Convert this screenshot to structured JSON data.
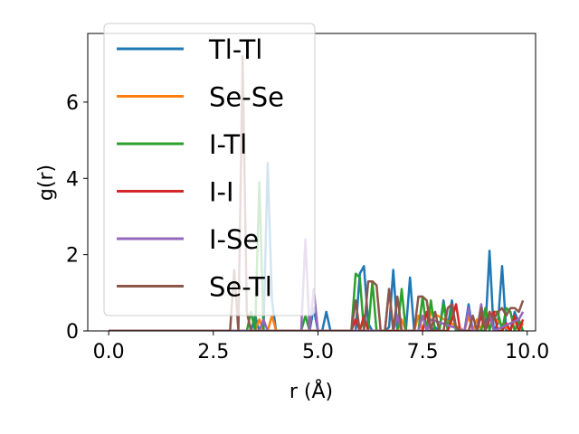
{
  "chart_data": {
    "type": "line",
    "title": "",
    "xlabel": "r (Å)",
    "ylabel": "g(r)",
    "xlim": [
      -0.5,
      10.2
    ],
    "ylim": [
      0,
      7.8
    ],
    "xticks": [
      "0.0",
      "2.5",
      "5.0",
      "7.5",
      "10.0"
    ],
    "xtick_values": [
      0,
      2.5,
      5,
      7.5,
      10
    ],
    "yticks": [
      "0",
      "2",
      "4",
      "6"
    ],
    "ytick_values": [
      0,
      2,
      4,
      6
    ],
    "grid": false,
    "legend_placement": "upper-left",
    "series": [
      {
        "name": "Tl-Tl",
        "color": "#1f77b4",
        "x": [
          0,
          3.4,
          3.5,
          3.6,
          3.7,
          3.8,
          3.9,
          4.0,
          4.1,
          4.8,
          4.9,
          5.0,
          5.1,
          5.2,
          5.3,
          5.9,
          6.0,
          6.1,
          6.2,
          6.3,
          6.6,
          6.7,
          6.8,
          6.9,
          7.1,
          7.2,
          7.3,
          7.7,
          7.8,
          7.9,
          8.0,
          8.1,
          8.2,
          8.3,
          8.5,
          8.6,
          8.7,
          8.8,
          9.0,
          9.1,
          9.2,
          9.3,
          9.4,
          9.5,
          9.6,
          9.7,
          9.8,
          9.9
        ],
        "y": [
          0,
          0,
          0.4,
          0,
          0,
          4.4,
          0.8,
          0,
          0,
          0,
          0.6,
          0,
          0,
          0.5,
          0,
          0,
          1.5,
          1.7,
          0.2,
          0,
          0,
          0.1,
          1.6,
          0,
          0,
          1.4,
          0,
          0,
          0.1,
          0,
          0.8,
          0.1,
          0.8,
          0,
          0,
          0.7,
          0,
          0,
          0,
          2.1,
          0,
          0.2,
          1.7,
          0,
          0,
          0.5,
          0.2,
          0
        ]
      },
      {
        "name": "Se-Se",
        "color": "#ff7f0e",
        "x": [
          0,
          3.5,
          3.6,
          3.7,
          3.8,
          3.9,
          4.0,
          6.9,
          7.0,
          7.1,
          7.2,
          7.3,
          7.4,
          7.5,
          7.6,
          7.7,
          8.5,
          8.6,
          8.7,
          8.8,
          8.9,
          9.0,
          9.6,
          9.7,
          9.8,
          9.9
        ],
        "y": [
          0,
          0,
          0.3,
          0,
          0,
          0.4,
          0,
          0,
          0.3,
          0,
          0,
          0,
          0.4,
          0,
          0,
          0.5,
          0,
          0.4,
          0,
          0.3,
          0,
          0.5,
          0,
          0.3,
          0,
          0.2
        ]
      },
      {
        "name": "I-Tl",
        "color": "#2ca02c",
        "x": [
          0,
          3.3,
          3.4,
          3.5,
          3.6,
          3.7,
          4.6,
          4.7,
          4.8,
          5.8,
          5.9,
          6.0,
          6.1,
          6.2,
          6.3,
          6.4,
          6.5,
          6.9,
          7.0,
          7.1,
          7.2,
          7.3,
          7.4,
          7.5,
          7.6,
          7.7,
          7.8,
          7.9,
          8.0,
          8.1,
          8.2,
          8.3,
          8.4,
          8.9,
          9.0,
          9.1,
          9.2,
          9.3,
          9.4,
          9.5,
          9.6,
          9.7,
          9.8,
          9.9
        ],
        "y": [
          0,
          0,
          0.5,
          0,
          3.9,
          0,
          0,
          0.4,
          0,
          0,
          1.5,
          1.4,
          0,
          0,
          1.3,
          0,
          0,
          0,
          1.1,
          0,
          0,
          0,
          0,
          0.9,
          0,
          0.8,
          0,
          0,
          0.7,
          0,
          0.6,
          0,
          0,
          0,
          0.6,
          0,
          0.5,
          0.5,
          0,
          0.6,
          0.5,
          0,
          0.3,
          0
        ]
      },
      {
        "name": "I-I",
        "color": "#d62728",
        "x": [
          0,
          5.8,
          5.9,
          6.0,
          6.1,
          6.2,
          6.3,
          7.5,
          7.6,
          7.7,
          8.1,
          8.2,
          8.3,
          8.4,
          8.8,
          8.9,
          9.0,
          9.1,
          9.2,
          9.3,
          9.4,
          9.5,
          9.6,
          9.7,
          9.8,
          9.9
        ],
        "y": [
          0,
          0,
          0.3,
          0,
          0.4,
          0,
          0,
          0,
          0.5,
          0,
          0,
          0.3,
          0.7,
          0,
          0,
          0.4,
          0,
          0.3,
          0.5,
          0,
          0,
          0.2,
          0,
          0.4,
          0,
          0.3
        ]
      },
      {
        "name": "I-Se",
        "color": "#9467bd",
        "x": [
          0,
          3.6,
          3.7,
          3.8,
          4.6,
          4.7,
          4.8,
          4.9,
          5.0,
          6.6,
          6.7,
          6.8,
          6.9,
          7.0,
          7.4,
          7.5,
          7.6,
          7.7,
          8.5,
          8.6,
          8.7,
          8.8,
          8.9,
          9.0,
          9.1,
          9.2,
          9.8,
          9.9
        ],
        "y": [
          0,
          0,
          0.3,
          0,
          0,
          2.4,
          0,
          1.1,
          0,
          0,
          1.1,
          0,
          0.4,
          0,
          0,
          0.4,
          0,
          0.3,
          0,
          0.6,
          0,
          0,
          0.7,
          0,
          0.5,
          0,
          0.3,
          0.5
        ]
      },
      {
        "name": "Se-Tl",
        "color": "#8c564b",
        "x": [
          0,
          2.9,
          3.0,
          3.1,
          3.2,
          3.3,
          3.4,
          5.7,
          5.8,
          5.9,
          6.0,
          6.1,
          6.2,
          6.3,
          6.4,
          6.5,
          6.6,
          6.7,
          6.8,
          6.9,
          7.0,
          7.1,
          7.2,
          7.3,
          7.4,
          7.5,
          7.6,
          7.7,
          7.8,
          7.9,
          8.0,
          8.1,
          8.2,
          8.3,
          8.4,
          8.5,
          8.6,
          8.7,
          8.8,
          8.9,
          9.0,
          9.1,
          9.2,
          9.3,
          9.4,
          9.5,
          9.6,
          9.7,
          9.8,
          9.9
        ],
        "y": [
          0,
          0,
          1.6,
          0,
          7.2,
          0.5,
          0,
          0,
          0,
          0.8,
          0,
          0,
          1.3,
          1.3,
          1.2,
          0,
          0,
          1.1,
          0,
          0.9,
          0,
          0,
          0,
          0,
          0.9,
          0.9,
          0.8,
          0,
          0.5,
          0,
          0,
          0.6,
          0.7,
          0.1,
          0,
          0,
          0,
          0.4,
          0,
          0.6,
          0,
          0.5,
          0.3,
          0.5,
          0.6,
          0.4,
          0.6,
          0.6,
          0.5,
          0.8
        ]
      }
    ]
  }
}
